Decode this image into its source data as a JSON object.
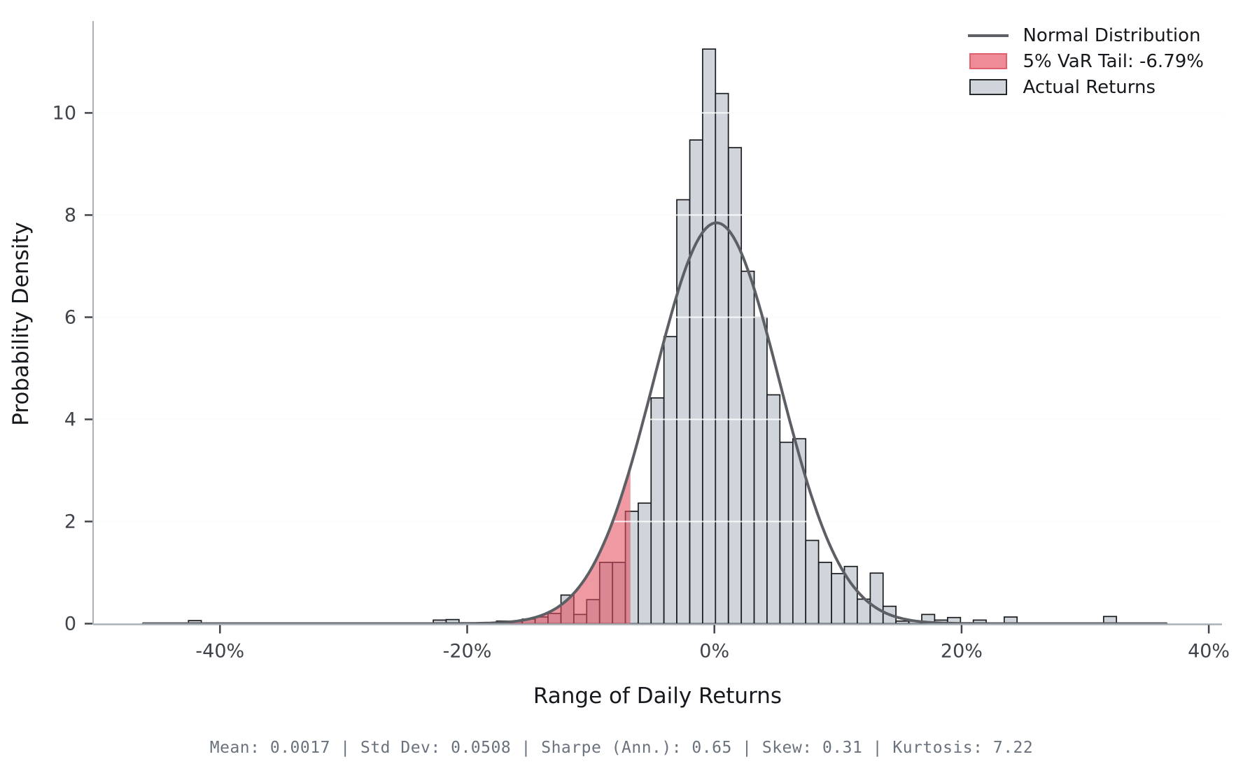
{
  "chart_data": {
    "type": "histogram",
    "title": "",
    "xlabel": "Range of Daily Returns",
    "ylabel": "Probability Density",
    "x_tick_labels": [
      "-40%",
      "-20%",
      "0%",
      "20%",
      "40%"
    ],
    "x_tick_values": [
      -40,
      -20,
      0,
      20,
      40
    ],
    "y_tick_labels": [
      "0",
      "2",
      "4",
      "6",
      "8",
      "10"
    ],
    "y_tick_values": [
      0,
      2,
      4,
      6,
      8,
      10
    ],
    "xlim": [
      -50.3,
      41.1
    ],
    "ylim": [
      0,
      11.8
    ],
    "grid": "horizontal",
    "legend_position": "upper right",
    "bin_width_pct": 1.04,
    "bins": [
      {
        "x": -42.55,
        "h": 0.06
      },
      {
        "x": -22.74,
        "h": 0.07
      },
      {
        "x": -21.7,
        "h": 0.08
      },
      {
        "x": -17.63,
        "h": 0.05
      },
      {
        "x": -16.59,
        "h": 0.04
      },
      {
        "x": -15.54,
        "h": 0.09
      },
      {
        "x": -14.5,
        "h": 0.13
      },
      {
        "x": -13.46,
        "h": 0.2
      },
      {
        "x": -12.41,
        "h": 0.56
      },
      {
        "x": -11.37,
        "h": 0.18
      },
      {
        "x": -10.33,
        "h": 0.47
      },
      {
        "x": -9.28,
        "h": 1.2
      },
      {
        "x": -8.24,
        "h": 1.2
      },
      {
        "x": -7.2,
        "h": 2.2
      },
      {
        "x": -6.16,
        "h": 2.36
      },
      {
        "x": -5.12,
        "h": 4.42
      },
      {
        "x": -4.08,
        "h": 5.62
      },
      {
        "x": -3.04,
        "h": 8.3
      },
      {
        "x": -1.99,
        "h": 9.47
      },
      {
        "x": -0.95,
        "h": 11.25
      },
      {
        "x": 0.09,
        "h": 10.38
      },
      {
        "x": 1.14,
        "h": 9.32
      },
      {
        "x": 2.18,
        "h": 6.9
      },
      {
        "x": 3.22,
        "h": 6.0
      },
      {
        "x": 4.26,
        "h": 4.48
      },
      {
        "x": 5.31,
        "h": 3.55
      },
      {
        "x": 6.35,
        "h": 3.62
      },
      {
        "x": 7.39,
        "h": 1.63
      },
      {
        "x": 8.44,
        "h": 1.2
      },
      {
        "x": 9.48,
        "h": 0.98
      },
      {
        "x": 10.52,
        "h": 1.12
      },
      {
        "x": 11.56,
        "h": 0.48
      },
      {
        "x": 12.61,
        "h": 0.99
      },
      {
        "x": 13.65,
        "h": 0.34
      },
      {
        "x": 14.69,
        "h": 0.05
      },
      {
        "x": 15.74,
        "h": 0.05
      },
      {
        "x": 16.78,
        "h": 0.18
      },
      {
        "x": 17.82,
        "h": 0.07
      },
      {
        "x": 18.87,
        "h": 0.12
      },
      {
        "x": 20.95,
        "h": 0.07
      },
      {
        "x": 23.45,
        "h": 0.13
      },
      {
        "x": 31.49,
        "h": 0.14
      }
    ],
    "normal_curve": {
      "mean_pct": 0.17,
      "std_pct": 5.08,
      "peak_density": 7.85,
      "range_pct": [
        -46.2,
        36.6
      ]
    },
    "var_tail": {
      "threshold_pct": -6.79,
      "label": "5% VaR Tail: -6.79%"
    }
  },
  "legend": {
    "items": [
      {
        "label": "Normal Distribution",
        "swatch": "line",
        "color": "#5c6065"
      },
      {
        "label": "5% VaR Tail: -6.79%",
        "swatch": "patch",
        "fill": "#ee8b96",
        "border": "#e0606e"
      },
      {
        "label": "Actual Returns",
        "swatch": "patch",
        "fill": "#cfd5db",
        "border": "#26282a"
      }
    ]
  },
  "footer": {
    "text": "Mean: 0.0017  |  Std Dev: 0.0508  |  Sharpe (Ann.): 0.65  |  Skew: 0.31  |  Kurtosis: 7.22",
    "stats": {
      "mean": "0.0017",
      "std_dev": "0.0508",
      "sharpe_ann": "0.65",
      "skew": "0.31",
      "kurtosis": "7.22"
    }
  },
  "colors": {
    "bar_fill": "#cfd5db",
    "bar_edge": "#1a1c1e",
    "curve": "#5c6065",
    "var_fill": "#e3505f",
    "var_fill_opacity": 0.58,
    "grid_under": "#e9ebee",
    "grid_over": "rgba(255,255,255,0.85)",
    "spine": "#aab0b7",
    "tick": "#3f444b",
    "tick_label": "#3f444b"
  }
}
